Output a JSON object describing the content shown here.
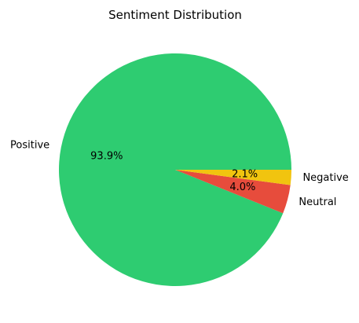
{
  "chart_data": {
    "type": "pie",
    "title": "Sentiment Distribution",
    "categories": [
      "Positive",
      "Neutral",
      "Negative"
    ],
    "values": [
      93.9,
      4.0,
      2.1
    ],
    "percent_labels": [
      "93.9%",
      "4.0%",
      "2.1%"
    ],
    "colors": [
      "#2ecc71",
      "#e74c3c",
      "#f1c40f"
    ],
    "start_angle_deg": 0,
    "direction": "counterclockwise"
  }
}
